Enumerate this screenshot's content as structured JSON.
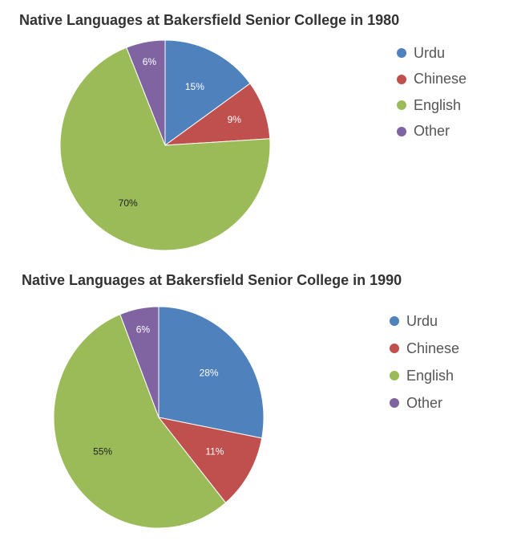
{
  "chart_data": [
    {
      "type": "pie",
      "title": "Native Languages at Bakersfield Senior College in 1980",
      "categories": [
        "Urdu",
        "Chinese",
        "English",
        "Other"
      ],
      "values": [
        15,
        9,
        70,
        6
      ],
      "labels": [
        "15%",
        "9%",
        "70%",
        "6%"
      ],
      "colors": [
        "#4f81bd",
        "#c0504d",
        "#9bbb59",
        "#8064a2"
      ],
      "legend_position": "right"
    },
    {
      "type": "pie",
      "title": "Native Languages at Bakersfield Senior College in 1990",
      "categories": [
        "Urdu",
        "Chinese",
        "English",
        "Other"
      ],
      "values": [
        28,
        11,
        55,
        6
      ],
      "labels": [
        "28%",
        "11%",
        "55%",
        "6%"
      ],
      "colors": [
        "#4f81bd",
        "#c0504d",
        "#9bbb59",
        "#8064a2"
      ],
      "legend_position": "right"
    }
  ]
}
